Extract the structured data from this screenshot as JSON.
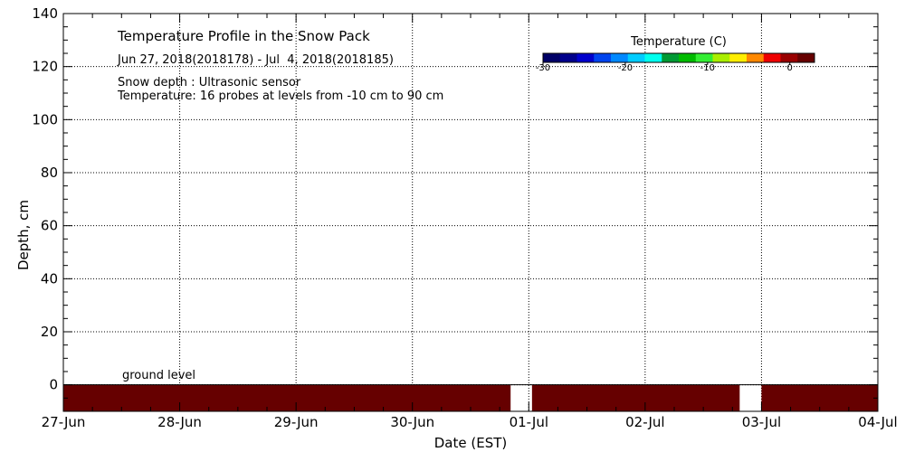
{
  "chart_data": {
    "type": "heatmap",
    "title": "Temperature Profile in the Snow Pack",
    "subtitle": "Jun 27, 2018(2018178) - Jul  4, 2018(2018185)",
    "notes": [
      "Snow depth : Ultrasonic sensor",
      "Temperature: 16 probes at levels from -10 cm to 90 cm"
    ],
    "xlabel": "Date (EST)",
    "ylabel": "Depth, cm",
    "x_ticks": [
      "27-Jun",
      "28-Jun",
      "29-Jun",
      "30-Jun",
      "01-Jul",
      "02-Jul",
      "03-Jul",
      "04-Jul"
    ],
    "x_range_days": [
      0,
      7
    ],
    "y_ticks": [
      0,
      20,
      40,
      60,
      80,
      100,
      120,
      140
    ],
    "ylim": [
      -10,
      140
    ],
    "grid": "dotted",
    "ground_level_label": "ground level",
    "ground_level_depth": 0,
    "colorbar": {
      "title": "Temperature (C)",
      "range": [
        -30,
        3
      ],
      "ticks": [
        -30,
        -20,
        -10,
        0
      ],
      "tick_labels": [
        "-30",
        "-20",
        "-10",
        "0"
      ],
      "colors": [
        "#000066",
        "#00008b",
        "#0000cc",
        "#0044ee",
        "#0088ff",
        "#00ccff",
        "#00ffee",
        "#009933",
        "#00bb00",
        "#33ee33",
        "#aaee00",
        "#ffee00",
        "#ff8800",
        "#ee0000",
        "#990000",
        "#660000"
      ]
    },
    "series": [
      {
        "name": "Temperature",
        "depth_range": [
          -10,
          0
        ],
        "color": "#660000",
        "segments": [
          {
            "from": "27-Jun 00:00",
            "to": "30-Jun 20:15"
          },
          {
            "from": "01-Jul 00:40",
            "to": "02-Jul 19:30"
          },
          {
            "from": "03-Jul 00:00",
            "to": "04-Jul 00:00"
          }
        ],
        "gaps": [
          {
            "from": "30-Jun 20:15",
            "to": "01-Jul 00:40"
          },
          {
            "from": "02-Jul 19:30",
            "to": "03-Jul 00:00"
          }
        ]
      }
    ]
  }
}
